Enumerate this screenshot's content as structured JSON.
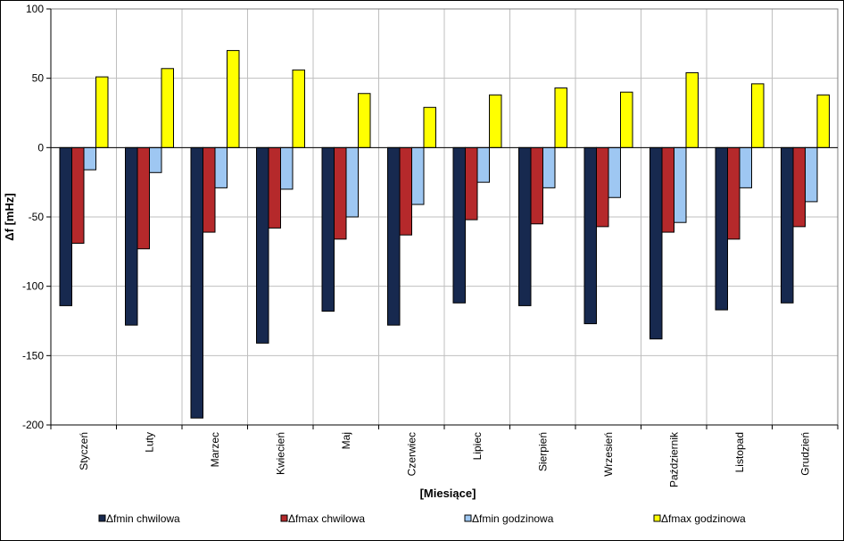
{
  "chart_data": {
    "type": "bar",
    "title": "",
    "xlabel": "[Miesiące]",
    "ylabel": "Δf [mHz]",
    "ylim": [
      -200,
      100
    ],
    "yticks": [
      100,
      50,
      0,
      -50,
      -100,
      -150,
      -200
    ],
    "grid": true,
    "legend_position": "bottom",
    "categories": [
      "Styczeń",
      "Luty",
      "Marzec",
      "Kwiecień",
      "Maj",
      "Czerwiec",
      "Lipiec",
      "Sierpień",
      "Wrzesień",
      "Październik",
      "Listopad",
      "Grudzień"
    ],
    "series": [
      {
        "name": "Δfmin  chwilowa",
        "color": "#17294f",
        "values": [
          -114,
          -128,
          -195,
          -141,
          -118,
          -128,
          -112,
          -114,
          -127,
          -138,
          -117,
          -112
        ]
      },
      {
        "name": "Δfmax chwilowa",
        "color": "#b5292b",
        "values": [
          -69,
          -73,
          -61,
          -58,
          -66,
          -63,
          -52,
          -55,
          -57,
          -61,
          -66,
          -57
        ]
      },
      {
        "name": "Δfmin  godzinowa",
        "color": "#9ec7f2",
        "values": [
          -16,
          -18,
          -29,
          -30,
          -50,
          -41,
          -25,
          -29,
          -36,
          -54,
          -29,
          -39
        ]
      },
      {
        "name": "Δfmax godzinowa",
        "color": "#ffff00",
        "values": [
          51,
          57,
          70,
          56,
          39,
          29,
          38,
          43,
          40,
          54,
          46,
          38
        ]
      }
    ]
  }
}
